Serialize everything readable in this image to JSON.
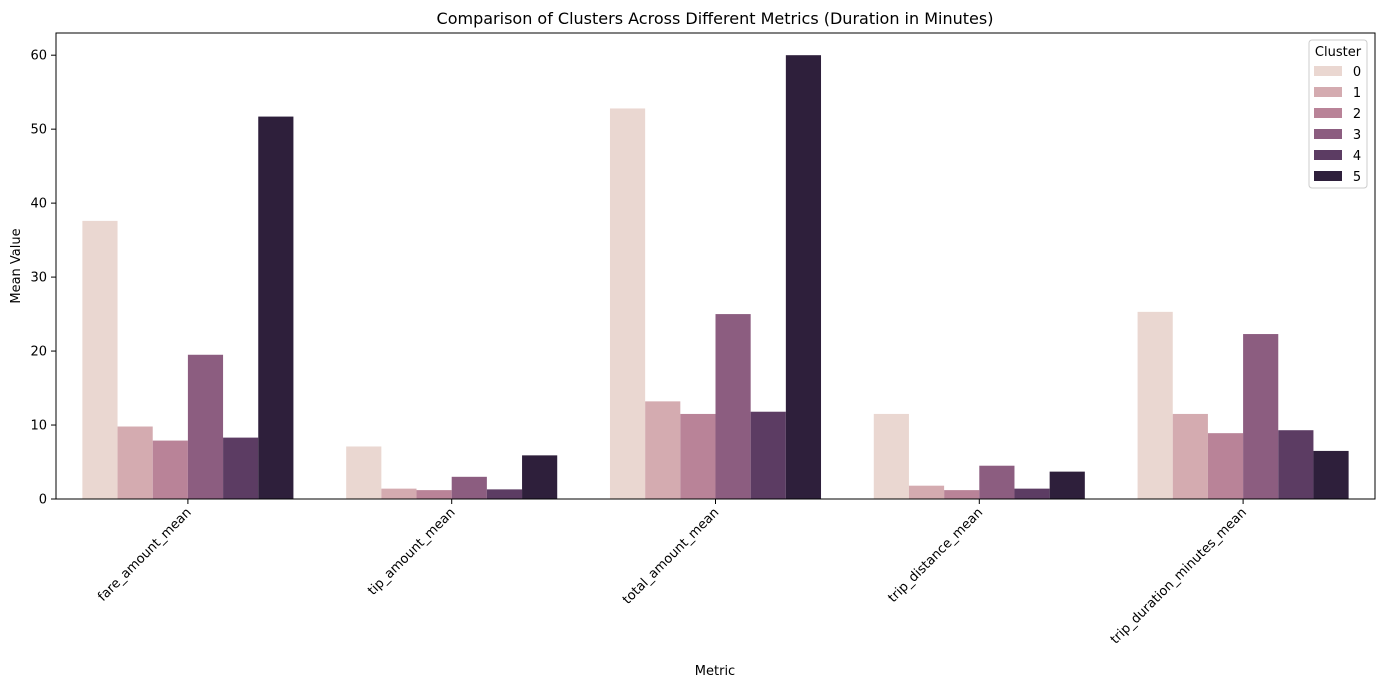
{
  "chart_data": {
    "type": "bar",
    "title": "Comparison of Clusters Across Different Metrics (Duration in Minutes)",
    "xlabel": "Metric",
    "ylabel": "Mean Value",
    "ylim": [
      0,
      63
    ],
    "yticks": [
      0,
      10,
      20,
      30,
      40,
      50,
      60
    ],
    "grid": false,
    "legend": {
      "title": "Cluster",
      "placement": "top-right"
    },
    "categories": [
      "fare_amount_mean",
      "tip_amount_mean",
      "total_amount_mean",
      "trip_distance_mean",
      "trip_duration_minutes_mean"
    ],
    "series": [
      {
        "name": "0",
        "color": "#ead7d1",
        "values": [
          37.6,
          7.1,
          52.8,
          11.5,
          25.3
        ]
      },
      {
        "name": "1",
        "color": "#d4abb0",
        "values": [
          9.8,
          1.4,
          13.2,
          1.8,
          11.5
        ]
      },
      {
        "name": "2",
        "color": "#b98398",
        "values": [
          7.9,
          1.2,
          11.5,
          1.2,
          8.9
        ]
      },
      {
        "name": "3",
        "color": "#8c5d80",
        "values": [
          19.5,
          3.0,
          25.0,
          4.5,
          22.3
        ]
      },
      {
        "name": "4",
        "color": "#5c3c63",
        "values": [
          8.3,
          1.3,
          11.8,
          1.4,
          9.3
        ]
      },
      {
        "name": "5",
        "color": "#2e1f3b",
        "values": [
          51.7,
          5.9,
          60.0,
          3.7,
          6.5
        ]
      }
    ]
  }
}
